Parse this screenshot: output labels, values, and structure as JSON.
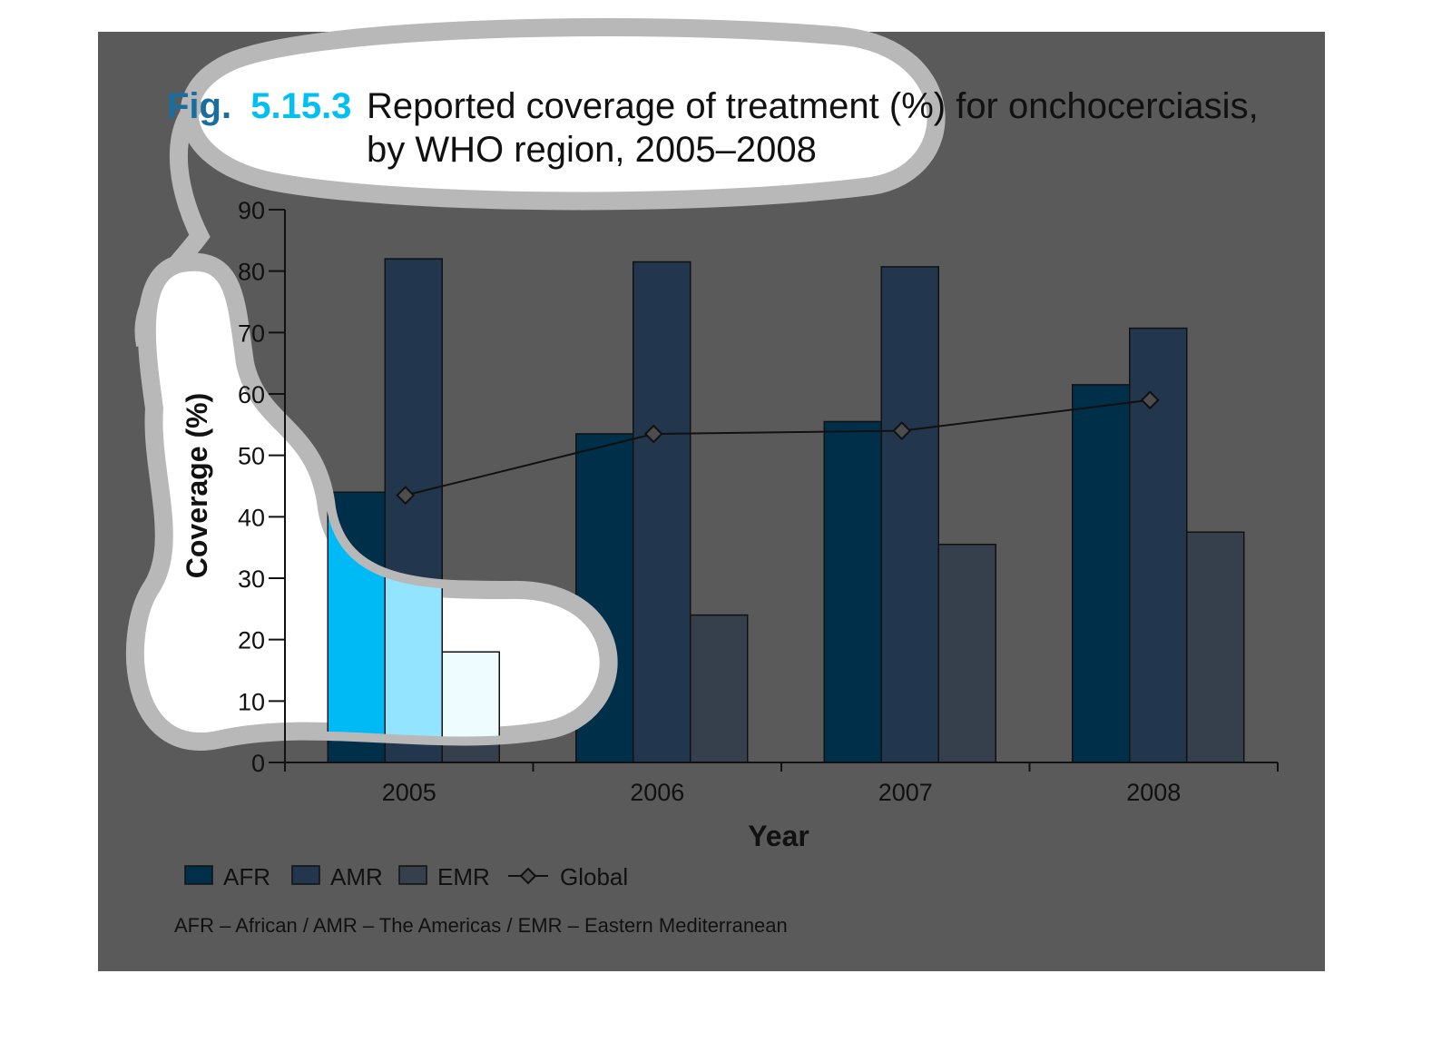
{
  "figure": {
    "fig_label": "Fig.",
    "fig_number": "5.15.3",
    "title_line1": "Reported coverage of treatment (%) for onchocerciasis,",
    "title_line2": "by WHO region, 2005–2008",
    "footnote": "AFR – African / AMR – The Americas / EMR – Eastern Mediterranean"
  },
  "colors": {
    "background_panel": "#5a5a5a",
    "fig_label": "#1a6e9e",
    "fig_number": "#00bff2",
    "afr": "#003049",
    "amr": "#22364d",
    "emr": "#363f4c",
    "highlight_afr": "#00baf6",
    "highlight_amr": "#93e4ff",
    "highlight_emr": "#eefcff",
    "global_line": "#111111",
    "global_marker": "#4d4d4d"
  },
  "chart_data": {
    "type": "bar",
    "title": "Reported coverage of treatment (%) for onchocerciasis, by WHO region, 2005–2008",
    "xlabel": "Year",
    "ylabel": "Coverage (%)",
    "categories": [
      "2005",
      "2006",
      "2007",
      "2008"
    ],
    "ylim": [
      0,
      90
    ],
    "yticks": [
      0,
      10,
      20,
      30,
      40,
      50,
      60,
      70,
      80,
      90
    ],
    "grid": false,
    "legend_position": "bottom-left",
    "series": [
      {
        "name": "AFR",
        "type": "bar",
        "values": [
          44,
          53.5,
          55.5,
          61.5
        ]
      },
      {
        "name": "AMR",
        "type": "bar",
        "values": [
          82,
          81.5,
          80.7,
          70.7
        ]
      },
      {
        "name": "EMR",
        "type": "bar",
        "values": [
          18,
          24,
          35.5,
          37.5
        ]
      },
      {
        "name": "Global",
        "type": "line",
        "marker": "diamond",
        "values": [
          43.5,
          53.5,
          54,
          59
        ]
      }
    ]
  }
}
